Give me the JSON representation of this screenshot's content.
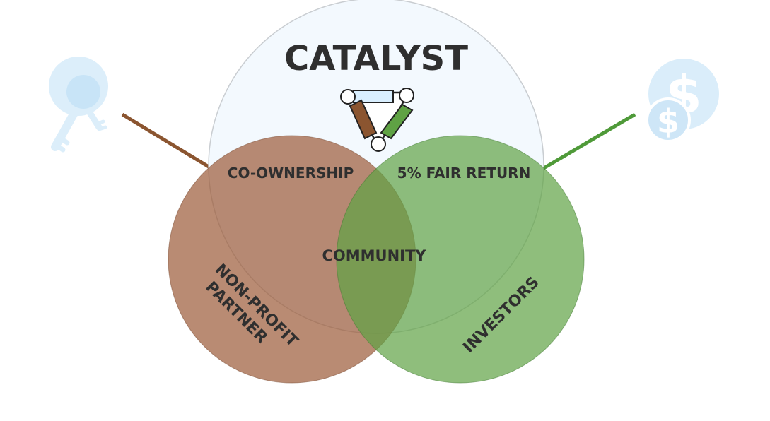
{
  "diagram": {
    "title": "CATALYST",
    "labels": {
      "co_ownership": "CO-OWNERSHIP",
      "fair_return": "5% FAIR RETURN",
      "community": "COMMUNITY",
      "nonprofit_line1": "NON-PROFIT",
      "nonprofit_line2": "PARTNER",
      "investors": "INVESTORS"
    },
    "icons": {
      "left": "key-icon",
      "right": "dollar-coins-icon",
      "center": "linked-hands-triangle-icon"
    },
    "colors": {
      "catalyst_fill": "#f3f9fe",
      "catalyst_stroke": "#c9cdd1",
      "nonprofit_fill": "#9b5a38",
      "investors_fill": "#5fa244",
      "brown_line": "#8b5530",
      "green_line": "#4f9a39",
      "icon_fill": "#d6ecfa",
      "text": "#2f2f2f"
    }
  }
}
